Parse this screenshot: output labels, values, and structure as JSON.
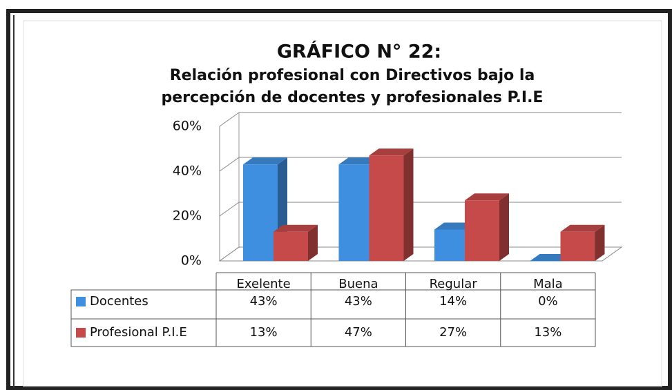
{
  "chart_data": {
    "type": "bar3d",
    "title": "GRÁFICO N° 22:",
    "subtitle": [
      "Relación profesional con Directivos bajo la",
      "percepción de docentes y profesionales P.I.E"
    ],
    "categories": [
      "Exelente",
      "Buena",
      "Regular",
      "Mala"
    ],
    "series": [
      {
        "name": "Docentes",
        "color": "#3f8fe0",
        "values": [
          43,
          43,
          14,
          0
        ],
        "value_labels": [
          "43%",
          "43%",
          "14%",
          "0%"
        ]
      },
      {
        "name": "Profesional P.I.E",
        "color": "#c64a4a",
        "values": [
          13,
          47,
          27,
          13
        ],
        "value_labels": [
          "13%",
          "47%",
          "27%",
          "13%"
        ]
      }
    ],
    "ylim": [
      0,
      60
    ],
    "yticks": [
      {
        "value": 0,
        "label": "0%"
      },
      {
        "value": 20,
        "label": "20%"
      },
      {
        "value": 40,
        "label": "40%"
      },
      {
        "value": 60,
        "label": "60%"
      }
    ],
    "grid": true
  }
}
